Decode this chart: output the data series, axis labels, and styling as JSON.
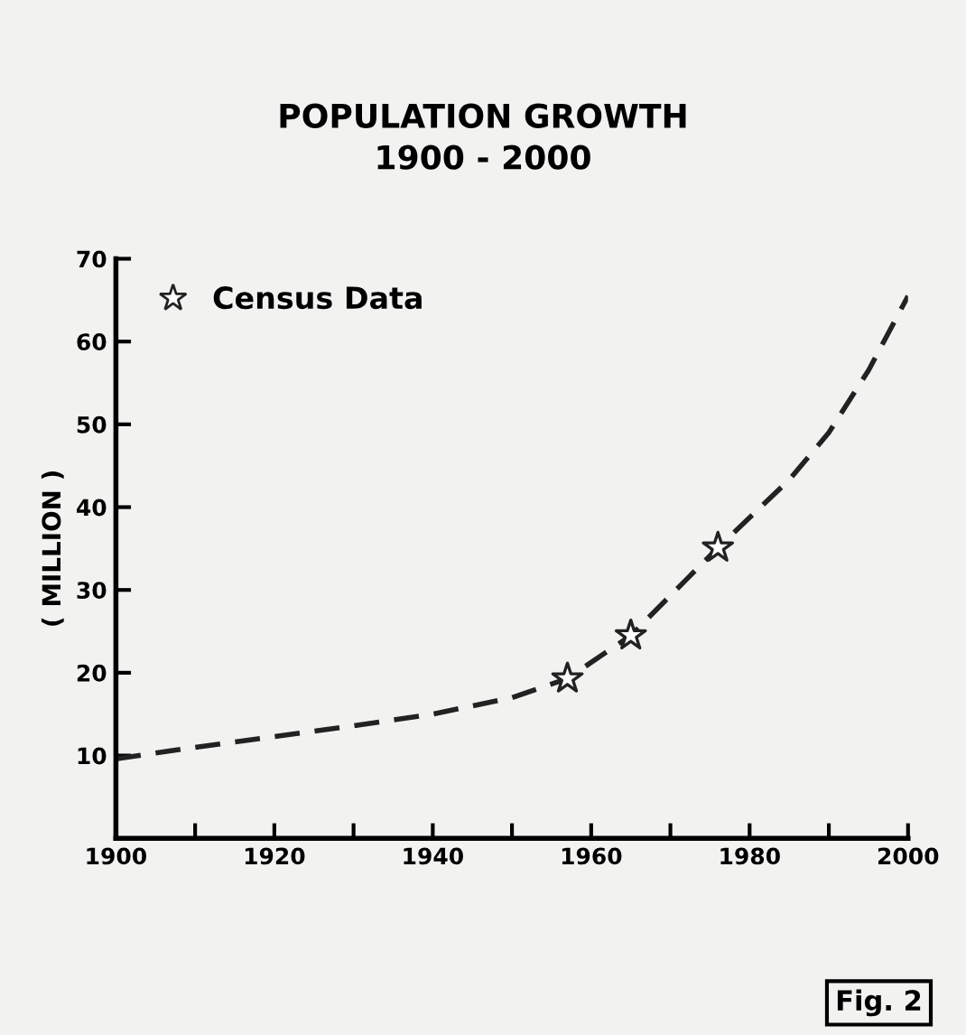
{
  "chart_data": {
    "type": "line",
    "title": "POPULATION GROWTH\n1900 - 2000",
    "ylabel": "( MILLION )",
    "annotations": [
      "Fig. 2"
    ],
    "series": [
      {
        "color": "#222222",
        "line_style": "dashed",
        "marker": "none",
        "x": [
          1900,
          1910,
          1920,
          1930,
          1940,
          1950,
          1957,
          1965,
          1976,
          1985,
          1990,
          1995,
          2000
        ],
        "values": [
          9.6,
          11,
          12.3,
          13.6,
          15,
          17,
          19.3,
          24.5,
          35.1,
          43.3,
          49,
          56.5,
          65.5
        ]
      },
      {
        "type": "scatter",
        "name": "Census Data",
        "color": "#222222",
        "marker": "star",
        "x": [
          1957,
          1965,
          1976
        ],
        "values": [
          19.3,
          24.5,
          35.1
        ]
      }
    ],
    "xlim": [
      1900,
      2000
    ],
    "ylim": [
      0,
      70
    ],
    "xticks": [
      1900,
      {
        "value": 1910,
        "label": null
      },
      1920,
      {
        "value": 1930,
        "label": null
      },
      1940,
      {
        "value": 1950,
        "label": null
      },
      1960,
      {
        "value": 1970,
        "label": null
      },
      1980,
      {
        "value": 1990,
        "label": null
      },
      2000
    ],
    "yticks": [
      10,
      20,
      30,
      40,
      50,
      60,
      70
    ],
    "legend": "top left",
    "grid": false
  }
}
